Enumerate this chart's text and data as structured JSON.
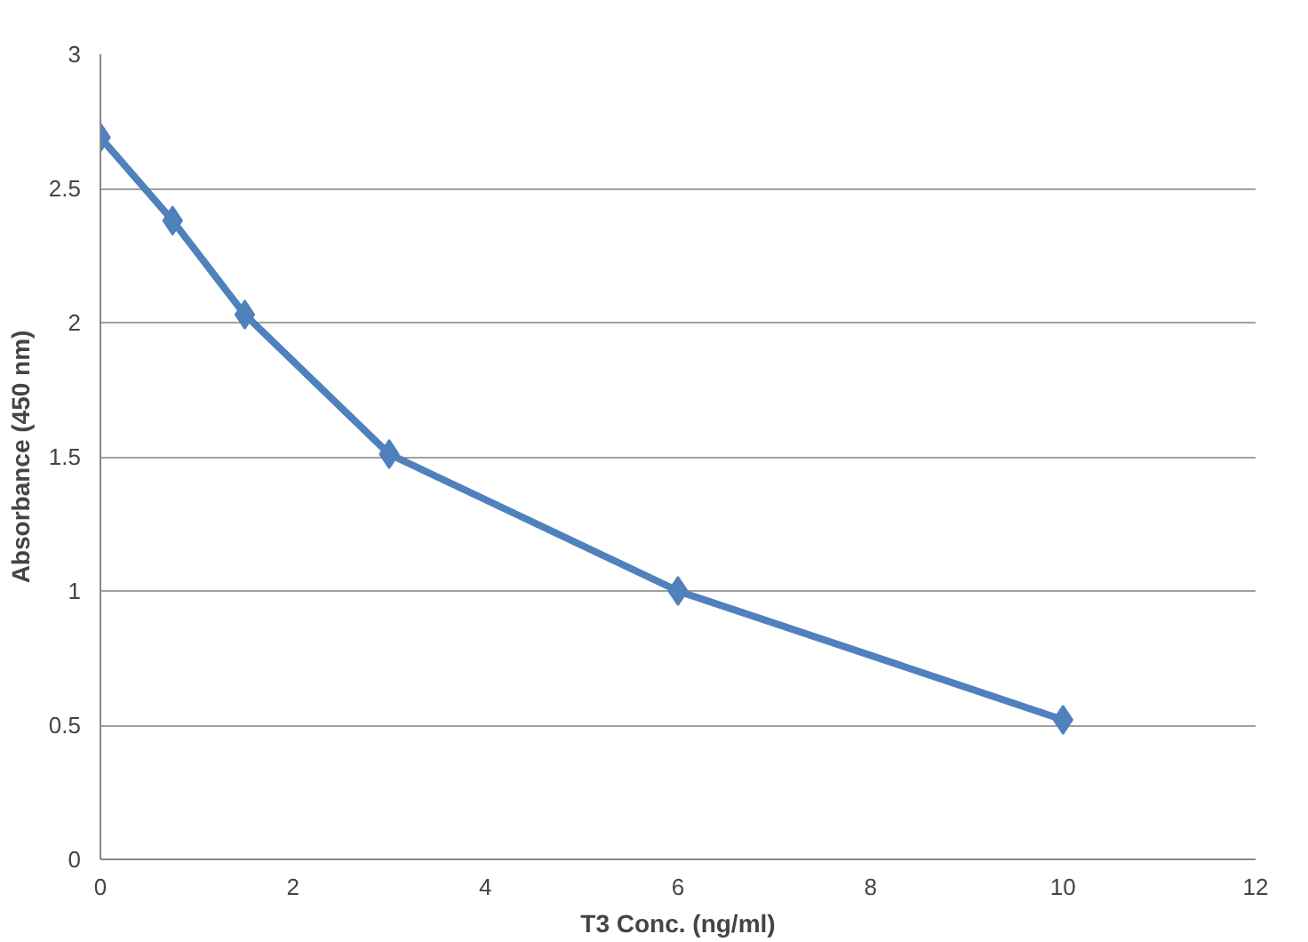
{
  "chart_data": {
    "type": "line",
    "xlabel": "T3 Conc. (ng/ml)",
    "ylabel": "Absorbance (450 nm)",
    "x": [
      0,
      0.75,
      1.5,
      3,
      6,
      10
    ],
    "series": [
      {
        "color": "#4f81bd",
        "values": [
          2.69,
          2.38,
          2.03,
          1.51,
          1.0,
          0.52
        ]
      }
    ],
    "xlim": [
      0,
      12
    ],
    "xticks": [
      0,
      2,
      4,
      6,
      8,
      10,
      12
    ],
    "ylim": [
      0,
      3
    ],
    "yticks": [
      0,
      0.5,
      1,
      1.5,
      2,
      2.5,
      3
    ],
    "grid": "y",
    "marker": "diamond",
    "line_style": "solid"
  }
}
